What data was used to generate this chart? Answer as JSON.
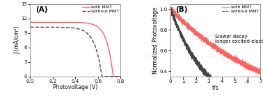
{
  "panel_A": {
    "label": "(A)",
    "xlabel": "Photovoltage (V)",
    "ylabel": "J (mA/cm²)",
    "xlim": [
      0,
      0.8
    ],
    "ylim": [
      0,
      15
    ],
    "yticks": [
      0,
      3,
      6,
      9,
      12,
      15
    ],
    "xticks": [
      0.0,
      0.2,
      0.4,
      0.6,
      0.8
    ],
    "with_MMT_color": "#ff6060",
    "without_MMT_color": "#444444",
    "with_MMT_Jsc": 11.2,
    "with_MMT_Voc": 0.735,
    "without_MMT_Jsc": 10.2,
    "without_MMT_Voc": 0.635,
    "with_MMT_n": 18,
    "without_MMT_n": 16
  },
  "panel_B": {
    "label": "(B)",
    "xlabel": "t/s",
    "ylabel": "Normalized Photovoltage",
    "xlim": [
      0,
      7
    ],
    "ylim": [
      0.35,
      1.05
    ],
    "yticks": [
      0.4,
      0.6,
      0.8,
      1.0
    ],
    "xticks": [
      0,
      1,
      2,
      3,
      4,
      5,
      6,
      7
    ],
    "with_MMT_color": "#ff6060",
    "without_MMT_color": "#444444",
    "annotation": "Slower decay\nlonger excited electron",
    "with_MMT_tau": 7.5,
    "without_MMT_tau": 2.8
  },
  "legend_with": "with MMT",
  "legend_without": "without MMT",
  "background_color": "#ffffff"
}
